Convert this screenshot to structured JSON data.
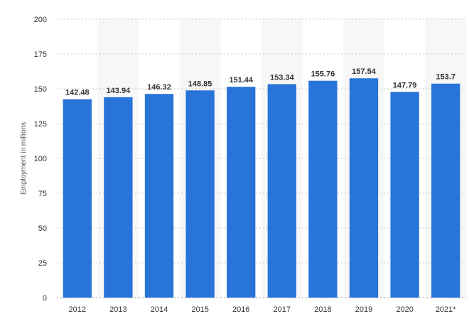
{
  "chart_data": {
    "type": "bar",
    "categories": [
      "2012",
      "2013",
      "2014",
      "2015",
      "2016",
      "2017",
      "2018",
      "2019",
      "2020",
      "2021*"
    ],
    "values": [
      142.48,
      143.94,
      146.32,
      148.85,
      151.44,
      153.34,
      155.76,
      157.54,
      147.79,
      153.7
    ],
    "value_labels": [
      "142.48",
      "143.94",
      "146.32",
      "148.85",
      "151.44",
      "153.34",
      "155.76",
      "157.54",
      "147.79",
      "153.7"
    ],
    "ylabel": "Employment in millions",
    "xlabel": "",
    "ylim": [
      0,
      200
    ],
    "yticks": [
      "0",
      "25",
      "50",
      "75",
      "100",
      "125",
      "150",
      "175",
      "200"
    ],
    "grid": true,
    "bar_color": "#2874d9",
    "alternate_band_color": "#f7f7f7"
  }
}
